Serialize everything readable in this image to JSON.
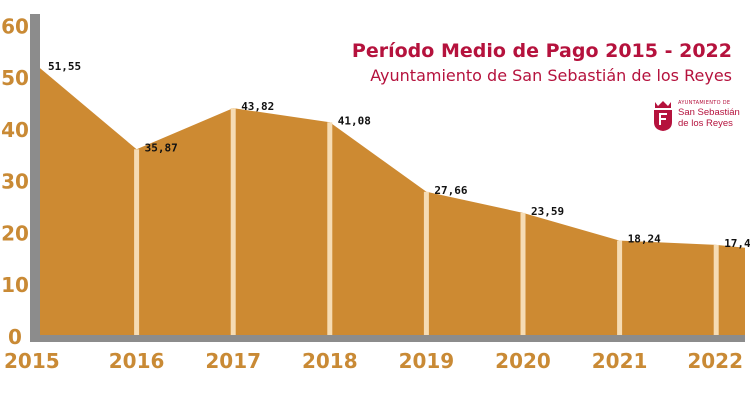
{
  "header": {
    "title": "Período Medio de Pago 2015 - 2022",
    "subtitle": "Ayuntamiento de San Sebastián de los Reyes"
  },
  "logo": {
    "small_text": "AYUNTAMIENTO DE",
    "line1": "San Sebastián",
    "line2": "de los Reyes"
  },
  "colors": {
    "area": "#cd8a32",
    "axis": "#8c8c8c",
    "tick_label": "#c98a35",
    "separator": "#f6dcb4",
    "title": "#b5123d"
  },
  "chart_data": {
    "type": "area",
    "categories": [
      "2015",
      "2016",
      "2017",
      "2018",
      "2019",
      "2020",
      "2021",
      "2022"
    ],
    "values": [
      51.55,
      35.87,
      43.82,
      41.08,
      27.66,
      23.59,
      18.24,
      17.4
    ],
    "value_labels": [
      "51,55",
      "35,87",
      "43,82",
      "41,08",
      "27,66",
      "23,59",
      "18,24",
      "17,4"
    ],
    "yticks": [
      "0",
      "10",
      "20",
      "30",
      "40",
      "50",
      "60"
    ],
    "ylim": [
      0,
      62
    ],
    "grid": false,
    "legend": "none"
  }
}
